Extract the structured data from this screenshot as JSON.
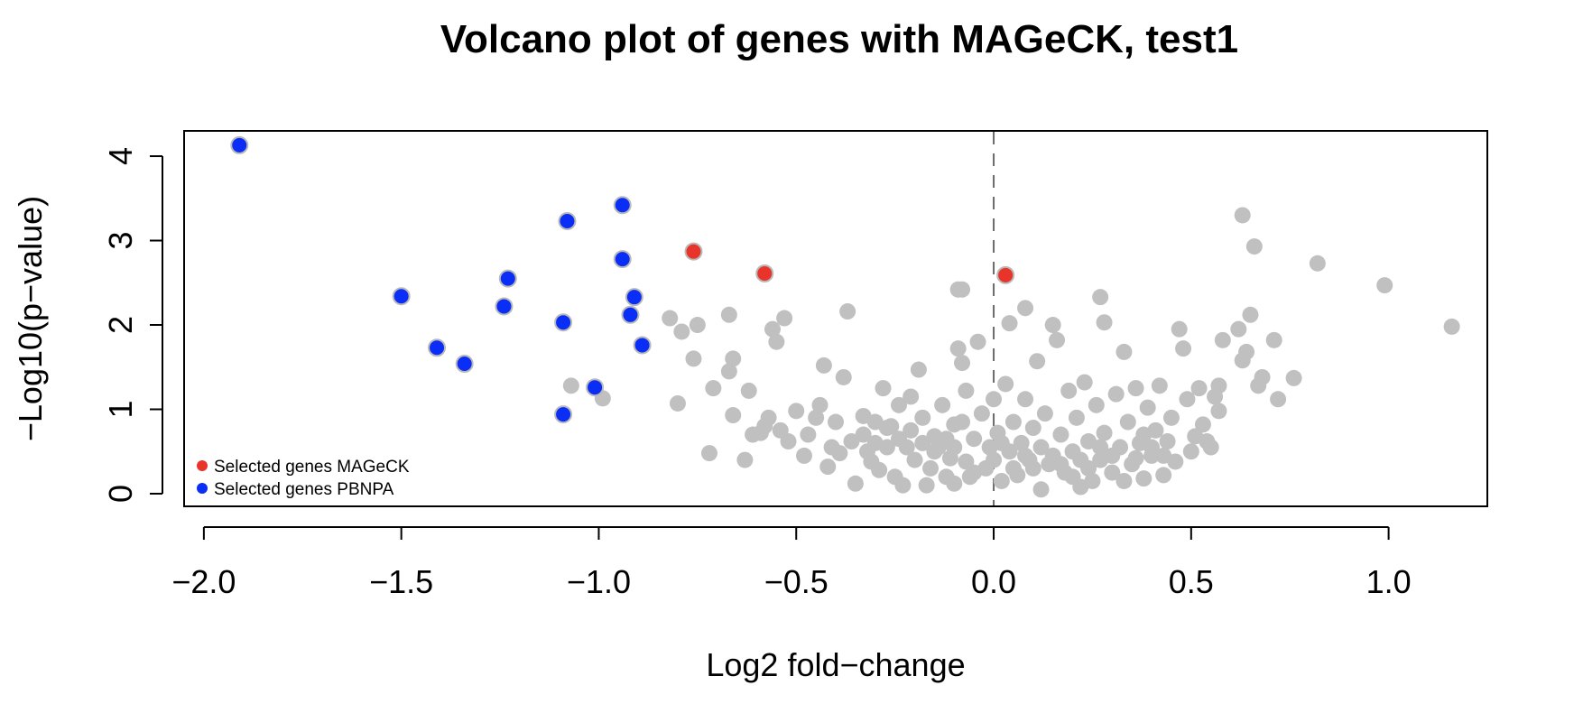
{
  "chart_data": {
    "type": "scatter",
    "title": "Volcano plot of genes with MAGeCK, test1",
    "xlabel": "Log2 fold−change",
    "ylabel": "−Log10(p−value)",
    "xlim": [
      -2.05,
      1.25
    ],
    "ylim": [
      -0.15,
      4.3
    ],
    "x_ticks": [
      {
        "value": -2.0,
        "label": "−2.0"
      },
      {
        "value": -1.5,
        "label": "−1.5"
      },
      {
        "value": -1.0,
        "label": "−1.0"
      },
      {
        "value": -0.5,
        "label": "−0.5"
      },
      {
        "value": 0.0,
        "label": "0.0"
      },
      {
        "value": 0.5,
        "label": "0.5"
      },
      {
        "value": 1.0,
        "label": "1.0"
      }
    ],
    "y_ticks": [
      {
        "value": 0,
        "label": "0"
      },
      {
        "value": 1,
        "label": "1"
      },
      {
        "value": 2,
        "label": "2"
      },
      {
        "value": 3,
        "label": "3"
      },
      {
        "value": 4,
        "label": "4"
      }
    ],
    "reference_line": {
      "x": 0,
      "style": "dashed"
    },
    "legend": {
      "position": "bottom-left",
      "entries": [
        {
          "label": "Selected genes MAGeCK",
          "color": "#e8342a"
        },
        {
          "label": "Selected genes PBNPA",
          "color": "#0a2ef5"
        }
      ]
    },
    "series": [
      {
        "color": "#c0c0c0",
        "points": [
          [
            0.63,
            3.3
          ],
          [
            0.66,
            2.93
          ],
          [
            0.82,
            2.73
          ],
          [
            0.99,
            2.47
          ],
          [
            1.16,
            1.98
          ],
          [
            0.27,
            2.33
          ],
          [
            0.28,
            2.03
          ],
          [
            0.08,
            2.2
          ],
          [
            0.04,
            2.02
          ],
          [
            -0.09,
            2.42
          ],
          [
            -0.08,
            2.42
          ],
          [
            -0.37,
            2.16
          ],
          [
            -0.53,
            2.08
          ],
          [
            -0.56,
            1.95
          ],
          [
            -0.67,
            2.12
          ],
          [
            -0.75,
            2.0
          ],
          [
            -0.82,
            2.08
          ],
          [
            -0.79,
            1.92
          ],
          [
            -0.76,
            1.6
          ],
          [
            -0.66,
            1.6
          ],
          [
            -0.67,
            1.45
          ],
          [
            -0.71,
            1.25
          ],
          [
            -0.8,
            1.07
          ],
          [
            -1.07,
            1.28
          ],
          [
            -0.99,
            1.13
          ],
          [
            -0.72,
            0.48
          ],
          [
            -0.63,
            0.4
          ],
          [
            -0.66,
            0.93
          ],
          [
            -0.62,
            1.22
          ],
          [
            -0.61,
            0.7
          ],
          [
            -0.59,
            0.72
          ],
          [
            -0.57,
            0.9
          ],
          [
            -0.55,
            1.8
          ],
          [
            -0.5,
            0.98
          ],
          [
            -0.47,
            0.7
          ],
          [
            -0.44,
            1.05
          ],
          [
            -0.43,
            1.52
          ],
          [
            -0.41,
            0.55
          ],
          [
            -0.4,
            0.85
          ],
          [
            -0.38,
            1.38
          ],
          [
            -0.36,
            0.62
          ],
          [
            -0.33,
            0.92
          ],
          [
            -0.31,
            0.38
          ],
          [
            -0.3,
            0.6
          ],
          [
            -0.28,
            1.25
          ],
          [
            -0.26,
            0.8
          ],
          [
            -0.25,
            0.2
          ],
          [
            -0.24,
            1.05
          ],
          [
            -0.22,
            0.55
          ],
          [
            -0.21,
            1.15
          ],
          [
            -0.19,
            1.47
          ],
          [
            -0.18,
            0.9
          ],
          [
            -0.16,
            0.3
          ],
          [
            -0.15,
            0.68
          ],
          [
            -0.13,
            1.05
          ],
          [
            -0.11,
            0.42
          ],
          [
            -0.1,
            0.82
          ],
          [
            -0.09,
            1.72
          ],
          [
            -0.08,
            1.55
          ],
          [
            -0.07,
            1.22
          ],
          [
            -0.06,
            0.2
          ],
          [
            -0.05,
            0.65
          ],
          [
            -0.04,
            1.8
          ],
          [
            -0.03,
            0.95
          ],
          [
            -0.02,
            0.3
          ],
          [
            -0.01,
            0.55
          ],
          [
            0.0,
            1.12
          ],
          [
            0.01,
            0.72
          ],
          [
            0.02,
            0.15
          ],
          [
            0.03,
            1.3
          ],
          [
            0.04,
            0.5
          ],
          [
            0.05,
            0.85
          ],
          [
            0.06,
            0.22
          ],
          [
            0.07,
            0.6
          ],
          [
            0.08,
            1.12
          ],
          [
            0.09,
            0.4
          ],
          [
            0.1,
            0.78
          ],
          [
            0.11,
            1.57
          ],
          [
            0.12,
            0.05
          ],
          [
            0.13,
            0.95
          ],
          [
            0.14,
            0.35
          ],
          [
            0.15,
            2.0
          ],
          [
            0.16,
            1.82
          ],
          [
            0.17,
            0.7
          ],
          [
            0.18,
            0.25
          ],
          [
            0.19,
            1.22
          ],
          [
            0.2,
            0.5
          ],
          [
            0.21,
            0.9
          ],
          [
            0.22,
            0.08
          ],
          [
            0.23,
            1.32
          ],
          [
            0.24,
            0.62
          ],
          [
            0.25,
            0.15
          ],
          [
            0.26,
            1.05
          ],
          [
            0.27,
            0.4
          ],
          [
            0.28,
            0.72
          ],
          [
            0.3,
            0.25
          ],
          [
            0.31,
            1.18
          ],
          [
            0.32,
            0.55
          ],
          [
            0.33,
            1.68
          ],
          [
            0.34,
            0.85
          ],
          [
            0.35,
            0.35
          ],
          [
            0.36,
            1.25
          ],
          [
            0.37,
            0.6
          ],
          [
            0.38,
            0.18
          ],
          [
            0.39,
            1.02
          ],
          [
            0.4,
            0.45
          ],
          [
            0.41,
            0.75
          ],
          [
            0.42,
            1.28
          ],
          [
            0.43,
            0.22
          ],
          [
            0.44,
            0.62
          ],
          [
            0.45,
            0.9
          ],
          [
            0.46,
            0.38
          ],
          [
            0.47,
            1.95
          ],
          [
            0.48,
            1.72
          ],
          [
            0.49,
            1.12
          ],
          [
            0.5,
            0.5
          ],
          [
            0.51,
            0.68
          ],
          [
            0.52,
            1.25
          ],
          [
            0.53,
            0.82
          ],
          [
            0.54,
            0.62
          ],
          [
            0.55,
            0.55
          ],
          [
            0.56,
            1.15
          ],
          [
            0.57,
            1.28
          ],
          [
            0.57,
            0.98
          ],
          [
            0.58,
            1.82
          ],
          [
            0.62,
            1.95
          ],
          [
            0.63,
            1.58
          ],
          [
            0.64,
            1.68
          ],
          [
            0.65,
            2.12
          ],
          [
            0.67,
            1.28
          ],
          [
            0.68,
            1.38
          ],
          [
            0.71,
            1.82
          ],
          [
            0.72,
            1.12
          ],
          [
            0.76,
            1.37
          ],
          [
            -0.52,
            0.62
          ],
          [
            -0.48,
            0.45
          ],
          [
            -0.45,
            0.9
          ],
          [
            -0.42,
            0.32
          ],
          [
            -0.39,
            0.48
          ],
          [
            -0.35,
            0.12
          ],
          [
            -0.32,
            0.5
          ],
          [
            -0.29,
            0.28
          ],
          [
            -0.27,
            0.55
          ],
          [
            -0.23,
            0.1
          ],
          [
            -0.2,
            0.4
          ],
          [
            -0.17,
            0.1
          ],
          [
            -0.14,
            0.55
          ],
          [
            -0.12,
            0.2
          ],
          [
            -0.1,
            0.12
          ],
          [
            -0.07,
            0.38
          ],
          [
            -0.05,
            0.25
          ],
          [
            -0.33,
            0.7
          ],
          [
            -0.3,
            0.85
          ],
          [
            -0.27,
            0.78
          ],
          [
            -0.24,
            0.65
          ],
          [
            -0.21,
            0.75
          ],
          [
            -0.18,
            0.6
          ],
          [
            -0.15,
            0.5
          ],
          [
            -0.12,
            0.65
          ],
          [
            -0.1,
            0.55
          ],
          [
            -0.08,
            0.85
          ],
          [
            0.0,
            0.4
          ],
          [
            0.02,
            0.6
          ],
          [
            0.05,
            0.3
          ],
          [
            0.08,
            0.45
          ],
          [
            0.1,
            0.3
          ],
          [
            0.12,
            0.55
          ],
          [
            0.15,
            0.45
          ],
          [
            0.17,
            0.35
          ],
          [
            0.2,
            0.2
          ],
          [
            0.22,
            0.4
          ],
          [
            0.24,
            0.3
          ],
          [
            0.27,
            0.55
          ],
          [
            0.3,
            0.45
          ],
          [
            0.33,
            0.15
          ],
          [
            0.36,
            0.42
          ],
          [
            0.38,
            0.7
          ],
          [
            0.4,
            0.55
          ],
          [
            0.43,
            0.45
          ],
          [
            -0.58,
            0.8
          ],
          [
            -0.54,
            0.75
          ]
        ]
      },
      {
        "name": "Selected genes MAGeCK",
        "color": "#e8342a",
        "points": [
          [
            -0.76,
            2.87
          ],
          [
            -0.58,
            2.61
          ],
          [
            0.03,
            2.59
          ]
        ]
      },
      {
        "name": "Selected genes PBNPA",
        "color": "#0a2ef5",
        "points": [
          [
            -1.91,
            4.13
          ],
          [
            -1.5,
            2.34
          ],
          [
            -1.41,
            1.73
          ],
          [
            -1.34,
            1.54
          ],
          [
            -1.24,
            2.22
          ],
          [
            -1.23,
            2.55
          ],
          [
            -1.09,
            2.03
          ],
          [
            -1.08,
            3.23
          ],
          [
            -1.09,
            0.94
          ],
          [
            -1.01,
            1.26
          ],
          [
            -0.94,
            3.42
          ],
          [
            -0.94,
            2.78
          ],
          [
            -0.92,
            2.12
          ],
          [
            -0.91,
            2.33
          ],
          [
            -0.89,
            1.76
          ]
        ]
      }
    ]
  }
}
